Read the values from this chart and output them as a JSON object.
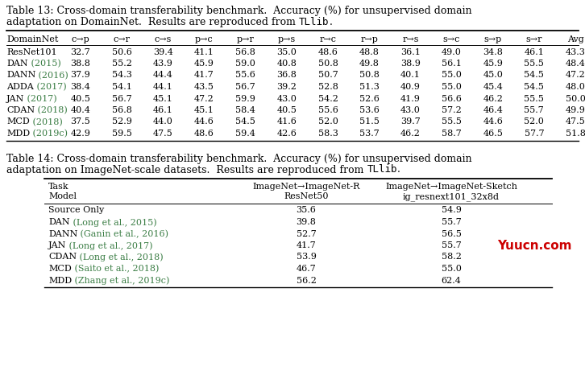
{
  "table13_caption_line1": "Table 13: Cross-domain transferability benchmark.  Accuracy (%) for unsupervised domain",
  "table13_caption_line2_before": "adaptation on DomainNet.  Results are reproduced from ",
  "table13_caption_line2_tllib": "TLlib",
  "table13_caption_line2_after": ".",
  "table13_headers": [
    "DomainNet",
    "c→p",
    "c→r",
    "c→s",
    "p→c",
    "p→r",
    "p→s",
    "r→c",
    "r→p",
    "r→s",
    "s→c",
    "s→p",
    "s→r",
    "Avg"
  ],
  "table13_rows": [
    [
      "ResNet101",
      null,
      "32.7",
      "50.6",
      "39.4",
      "41.1",
      "56.8",
      "35.0",
      "48.6",
      "48.8",
      "36.1",
      "49.0",
      "34.8",
      "46.1",
      "43.3"
    ],
    [
      "DAN",
      "(2015)",
      "38.8",
      "55.2",
      "43.9",
      "45.9",
      "59.0",
      "40.8",
      "50.8",
      "49.8",
      "38.9",
      "56.1",
      "45.9",
      "55.5",
      "48.4"
    ],
    [
      "DANN",
      "(2016)",
      "37.9",
      "54.3",
      "44.4",
      "41.7",
      "55.6",
      "36.8",
      "50.7",
      "50.8",
      "40.1",
      "55.0",
      "45.0",
      "54.5",
      "47.2"
    ],
    [
      "ADDA",
      "(2017)",
      "38.4",
      "54.1",
      "44.1",
      "43.5",
      "56.7",
      "39.2",
      "52.8",
      "51.3",
      "40.9",
      "55.0",
      "45.4",
      "54.5",
      "48.0"
    ],
    [
      "JAN",
      "(2017)",
      "40.5",
      "56.7",
      "45.1",
      "47.2",
      "59.9",
      "43.0",
      "54.2",
      "52.6",
      "41.9",
      "56.6",
      "46.2",
      "55.5",
      "50.0"
    ],
    [
      "CDAN",
      "(2018)",
      "40.4",
      "56.8",
      "46.1",
      "45.1",
      "58.4",
      "40.5",
      "55.6",
      "53.6",
      "43.0",
      "57.2",
      "46.4",
      "55.7",
      "49.9"
    ],
    [
      "MCD",
      "(2018)",
      "37.5",
      "52.9",
      "44.0",
      "44.6",
      "54.5",
      "41.6",
      "52.0",
      "51.5",
      "39.7",
      "55.5",
      "44.6",
      "52.0",
      "47.5"
    ],
    [
      "MDD",
      "(2019c)",
      "42.9",
      "59.5",
      "47.5",
      "48.6",
      "59.4",
      "42.6",
      "58.3",
      "53.7",
      "46.2",
      "58.7",
      "46.5",
      "57.7",
      "51.8"
    ]
  ],
  "table14_caption_line1": "Table 14: Cross-domain transferability benchmark.  Accuracy (%) for unsupervised domain",
  "table14_caption_line2_before": "adaptation on ImageNet-scale datasets.  Results are reproduced from ",
  "table14_caption_line2_tllib": "TLlib",
  "table14_caption_line2_after": ".",
  "table14_col2_header_line1": "ImageNet→ImageNet-R",
  "table14_col2_header_line2": "ResNet50",
  "table14_col3_header_line1": "ImageNet→ImageNet-Sketch",
  "table14_col3_header_line2": "ig_resnext101_32x8d",
  "table14_rows": [
    [
      "Source Only",
      null,
      "35.6",
      "54.9"
    ],
    [
      "DAN",
      "(Long et al., 2015)",
      "39.8",
      "55.7"
    ],
    [
      "DANN",
      "(Ganin et al., 2016)",
      "52.7",
      "56.5"
    ],
    [
      "JAN",
      "(Long et al., 2017)",
      "41.7",
      "55.7"
    ],
    [
      "CDAN",
      "(Long et al., 2018)",
      "53.9",
      "58.2"
    ],
    [
      "MCD",
      "(Saito et al., 2018)",
      "46.7",
      "55.0"
    ],
    [
      "MDD",
      "(Zhang et al., 2019c)",
      "56.2",
      "62.4"
    ]
  ],
  "green_color": "#3a7d44",
  "watermark_text": "Yuucn.com",
  "watermark_color": "#cc0000",
  "bg_color": "#ffffff",
  "text_color": "#000000"
}
